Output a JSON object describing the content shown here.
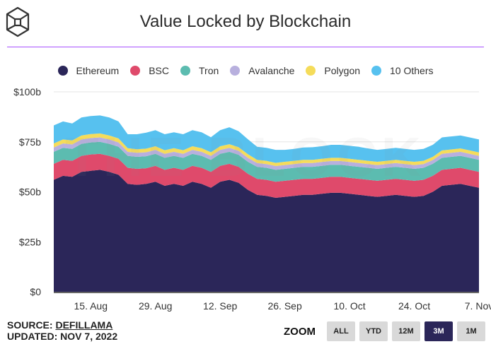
{
  "header": {
    "logo": "the-block-logo-icon",
    "title": "Value Locked by Blockchain"
  },
  "footer": {
    "source_prefix": "SOURCE: ",
    "source_link": "DEFILLAMA",
    "updated": "UPDATED: NOV 7, 2022"
  },
  "zoom": {
    "label": "ZOOM",
    "buttons": [
      {
        "label": "ALL",
        "active": false
      },
      {
        "label": "YTD",
        "active": false
      },
      {
        "label": "12M",
        "active": false
      },
      {
        "label": "3M",
        "active": true
      },
      {
        "label": "1M",
        "active": false
      }
    ]
  },
  "watermark": "THE BLOCK",
  "chart_data": {
    "type": "area",
    "stacked": true,
    "title": "Value Locked by Blockchain",
    "xlabel": "",
    "ylabel": "",
    "x_range": [
      "2022-08-07",
      "2022-11-07"
    ],
    "ylim": [
      0,
      100
    ],
    "y_unit": "billion USD",
    "y_ticks": [
      "$0",
      "$25b",
      "$50b",
      "$75b",
      "$100b"
    ],
    "y_tick_values": [
      0,
      25,
      50,
      75,
      100
    ],
    "x_ticks": [
      "15. Aug",
      "29. Aug",
      "12. Sep",
      "26. Sep",
      "10. Oct",
      "24. Oct",
      "7. Nov"
    ],
    "x_tick_days": [
      8,
      22,
      36,
      50,
      64,
      78,
      92
    ],
    "grid": true,
    "legend_position": "top-center",
    "x_days": [
      0,
      2,
      4,
      6,
      8,
      10,
      12,
      14,
      16,
      18,
      20,
      22,
      24,
      26,
      28,
      30,
      32,
      34,
      36,
      38,
      40,
      42,
      44,
      46,
      48,
      50,
      52,
      54,
      56,
      58,
      60,
      62,
      64,
      66,
      68,
      70,
      72,
      74,
      76,
      78,
      80,
      82,
      84,
      86,
      88,
      90,
      92
    ],
    "series": [
      {
        "name": "Ethereum",
        "color": "#2b2659",
        "values": [
          56,
          58,
          57.5,
          60,
          60.5,
          61,
          60,
          58.5,
          54,
          53.5,
          54,
          55,
          53,
          54,
          53,
          55,
          54,
          52,
          55,
          56,
          54.5,
          51,
          48.5,
          48,
          47,
          47.5,
          48,
          48.5,
          48.5,
          49,
          49.5,
          49.5,
          49,
          48.5,
          48,
          47.5,
          48,
          48.5,
          48,
          47.5,
          48,
          50,
          53,
          53.5,
          54,
          53,
          52
        ]
      },
      {
        "name": "BSC",
        "color": "#df4a6b",
        "values": [
          8,
          8,
          8,
          8,
          8.2,
          8,
          8,
          8,
          8,
          8,
          7.8,
          8,
          8,
          8,
          8,
          8,
          8,
          8,
          8,
          8,
          8,
          8,
          8,
          8,
          8,
          8,
          8,
          8,
          8,
          8,
          8,
          8,
          8,
          8,
          8,
          8,
          8,
          8,
          8,
          8,
          8,
          8,
          8,
          8,
          8,
          8,
          8
        ]
      },
      {
        "name": "Tron",
        "color": "#5cbcb0",
        "values": [
          6,
          6,
          6,
          6,
          6,
          6,
          6,
          6,
          6,
          6,
          6,
          6,
          6,
          6,
          6,
          6,
          6,
          6,
          6,
          6,
          6,
          6,
          6,
          6,
          6,
          6,
          6,
          6,
          6,
          6,
          6,
          6,
          6,
          6,
          6,
          6,
          6,
          6,
          6,
          6,
          6,
          6,
          6,
          6,
          6,
          6,
          6
        ]
      },
      {
        "name": "Avalanche",
        "color": "#b8b0de",
        "values": [
          2.2,
          2.2,
          2.2,
          2.2,
          2.2,
          2.2,
          2.2,
          2.2,
          2,
          2,
          2,
          2,
          2,
          2,
          2,
          2,
          2,
          2,
          2,
          2,
          2,
          2,
          1.9,
          1.9,
          1.9,
          1.9,
          1.9,
          1.9,
          1.9,
          1.9,
          1.9,
          1.9,
          1.9,
          1.9,
          1.9,
          1.9,
          1.9,
          1.9,
          1.9,
          1.9,
          1.9,
          1.9,
          2,
          2,
          2,
          2,
          2
        ]
      },
      {
        "name": "Polygon",
        "color": "#f5dc5a",
        "values": [
          2,
          2,
          2,
          2,
          2,
          2,
          2,
          2,
          1.8,
          1.8,
          1.8,
          1.8,
          1.8,
          1.8,
          1.8,
          1.8,
          1.8,
          1.8,
          1.8,
          1.8,
          1.8,
          1.8,
          1.6,
          1.6,
          1.6,
          1.6,
          1.6,
          1.6,
          1.6,
          1.6,
          1.6,
          1.6,
          1.6,
          1.6,
          1.6,
          1.6,
          1.6,
          1.6,
          1.6,
          1.6,
          1.6,
          1.6,
          1.7,
          1.7,
          1.7,
          1.7,
          1.7
        ]
      },
      {
        "name": "10 Others",
        "color": "#57c1ef",
        "values": [
          9,
          9,
          8.5,
          9,
          9,
          9,
          9,
          8.5,
          7,
          7.5,
          8,
          8,
          8,
          8,
          8,
          8,
          8,
          7.5,
          8,
          8.5,
          8,
          7.5,
          6.5,
          6.5,
          6.5,
          6,
          6,
          6.2,
          6.3,
          6.3,
          6.5,
          6.5,
          6.5,
          6.5,
          6.2,
          6,
          6,
          6,
          6,
          6,
          6,
          6,
          6.5,
          6.5,
          6.5,
          6.5,
          6.5
        ]
      }
    ]
  }
}
